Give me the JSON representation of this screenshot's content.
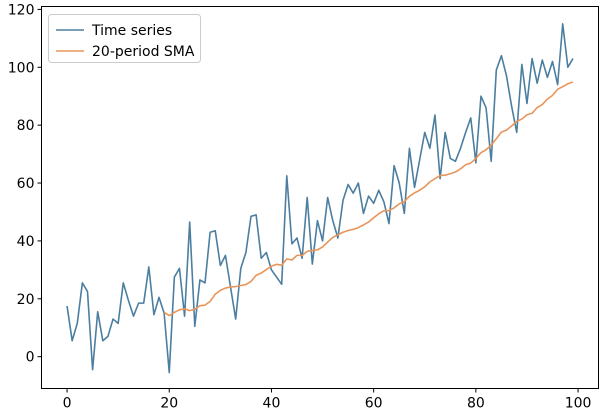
{
  "chart_data": {
    "type": "line",
    "title": "",
    "xlabel": "",
    "ylabel": "",
    "xlim": [
      -5,
      104
    ],
    "ylim": [
      -11,
      121
    ],
    "x_ticks": [
      0,
      20,
      40,
      60,
      80,
      100
    ],
    "y_ticks": [
      0,
      20,
      40,
      60,
      80,
      100,
      120
    ],
    "grid": false,
    "legend_position": "top-left",
    "series": [
      {
        "name": "Time series",
        "color": "#4c7ea0",
        "x_start": 0,
        "values": [
          17.5,
          5.5,
          11.5,
          25.5,
          22.5,
          -4.5,
          15.5,
          5.5,
          7,
          13,
          11.5,
          25.5,
          19.5,
          14,
          18.5,
          18.5,
          31,
          14.5,
          20.5,
          15,
          -5.5,
          27.5,
          30.5,
          14,
          46.5,
          10.5,
          26.5,
          25.5,
          43,
          43.5,
          31.5,
          35,
          24,
          13,
          30.5,
          36,
          48.5,
          49,
          34,
          36,
          30,
          27.5,
          25,
          62.5,
          39,
          41,
          34,
          55,
          32,
          47,
          40,
          55,
          47,
          41,
          54,
          59.5,
          56.5,
          60,
          49.5,
          55.5,
          53,
          57.5,
          53.5,
          46,
          66,
          60,
          49.5,
          72,
          58.5,
          68,
          77.5,
          72,
          83.5,
          61.5,
          77.5,
          68.5,
          67.5,
          72,
          77.5,
          82.5,
          67,
          90,
          86,
          67.5,
          99,
          104,
          97,
          86.5,
          77.5,
          101,
          87.5,
          103,
          94.5,
          102.5,
          96.5,
          102,
          94,
          115,
          100,
          103
        ]
      },
      {
        "name": "20-period SMA",
        "color": "#e8955a",
        "x_start": 19,
        "values": [
          15.3,
          14.2,
          15.3,
          16.2,
          16.5,
          15.9,
          16.4,
          17.6,
          17.8,
          19.1,
          21.6,
          22.9,
          23.7,
          24.1,
          24.2,
          24.6,
          24.9,
          26.0,
          28.1,
          28.9,
          30.1,
          31.3,
          31.9,
          31.6,
          33.8,
          33.4,
          35.0,
          35.0,
          36.4,
          36.7,
          36.9,
          37.9,
          39.6,
          41.2,
          42.1,
          43.0,
          43.6,
          44.0,
          44.6,
          45.5,
          46.5,
          48.0,
          49.4,
          50.4,
          50.5,
          51.4,
          52.8,
          53.6,
          55.4,
          56.6,
          57.5,
          58.7,
          60.4,
          61.5,
          62.6,
          62.7,
          63.2,
          63.8,
          64.9,
          66.3,
          66.9,
          68.5,
          70.5,
          71.5,
          73.1,
          75.3,
          77.6,
          78.3,
          79.7,
          81.3,
          82.1,
          83.6,
          84.1,
          86.1,
          87.1,
          89.0,
          90.3,
          92.4,
          93.3,
          94.3,
          94.9
        ]
      }
    ]
  }
}
